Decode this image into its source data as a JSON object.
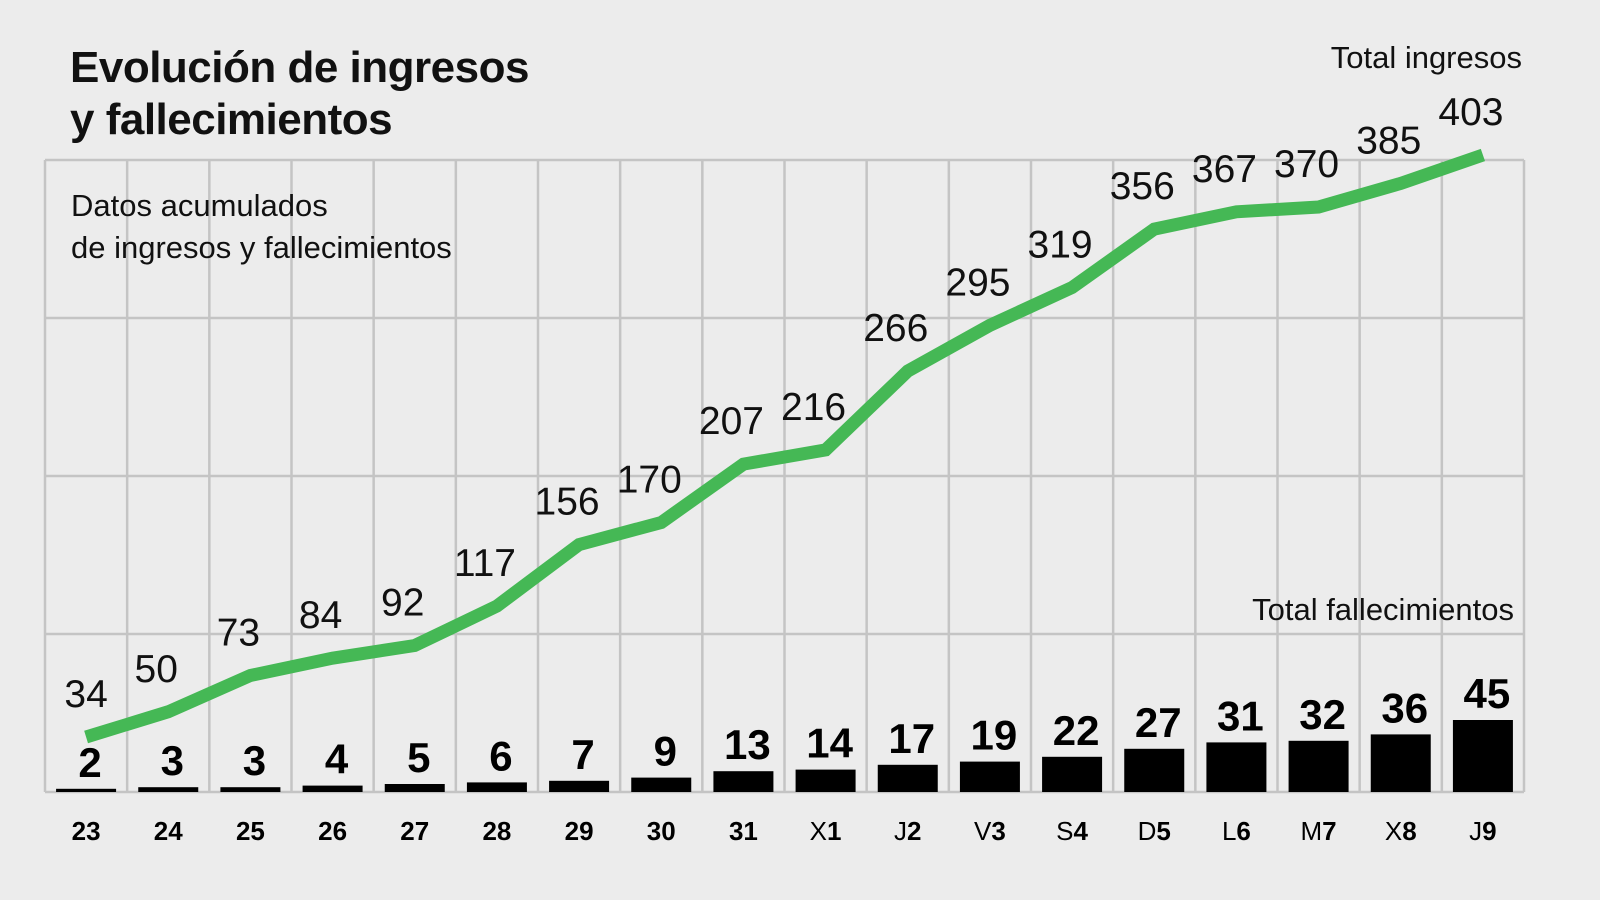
{
  "title_line1": "Evolución de ingresos",
  "title_line2": "y fallecimientos",
  "subtitle_line1": "Datos acumulados",
  "subtitle_line2": "de ingresos y fallecimientos",
  "legend_ingresos": "Total ingresos",
  "legend_fallecimientos": "Total fallecimientos",
  "colors": {
    "ingresos_line": "#45b855",
    "fallecimientos_bar": "#000000",
    "grid": "#c4c4c4",
    "background": "#ececec"
  },
  "chart_data": {
    "type": "line+bar",
    "title": "Evolución de ingresos y fallecimientos",
    "subtitle": "Datos acumulados de ingresos y fallecimientos",
    "categories": [
      {
        "prefix": "",
        "day": "23"
      },
      {
        "prefix": "",
        "day": "24"
      },
      {
        "prefix": "",
        "day": "25"
      },
      {
        "prefix": "",
        "day": "26"
      },
      {
        "prefix": "",
        "day": "27"
      },
      {
        "prefix": "",
        "day": "28"
      },
      {
        "prefix": "",
        "day": "29"
      },
      {
        "prefix": "",
        "day": "30"
      },
      {
        "prefix": "",
        "day": "31"
      },
      {
        "prefix": "X",
        "day": "1"
      },
      {
        "prefix": "J",
        "day": "2"
      },
      {
        "prefix": "V",
        "day": "3"
      },
      {
        "prefix": "S",
        "day": "4"
      },
      {
        "prefix": "D",
        "day": "5"
      },
      {
        "prefix": "L",
        "day": "6"
      },
      {
        "prefix": "M",
        "day": "7"
      },
      {
        "prefix": "X",
        "day": "8"
      },
      {
        "prefix": "J",
        "day": "9"
      }
    ],
    "series": [
      {
        "name": "Total ingresos",
        "type": "line",
        "color": "#45b855",
        "values": [
          34,
          50,
          73,
          84,
          92,
          117,
          156,
          170,
          207,
          216,
          266,
          295,
          319,
          356,
          367,
          370,
          385,
          403
        ]
      },
      {
        "name": "Total fallecimientos",
        "type": "bar",
        "color": "#000000",
        "values": [
          2,
          3,
          3,
          4,
          5,
          6,
          7,
          9,
          13,
          14,
          17,
          19,
          22,
          27,
          31,
          32,
          36,
          45
        ]
      }
    ],
    "xlabel": "",
    "ylabel": "",
    "grid": true,
    "legend_position": "inline-right"
  }
}
